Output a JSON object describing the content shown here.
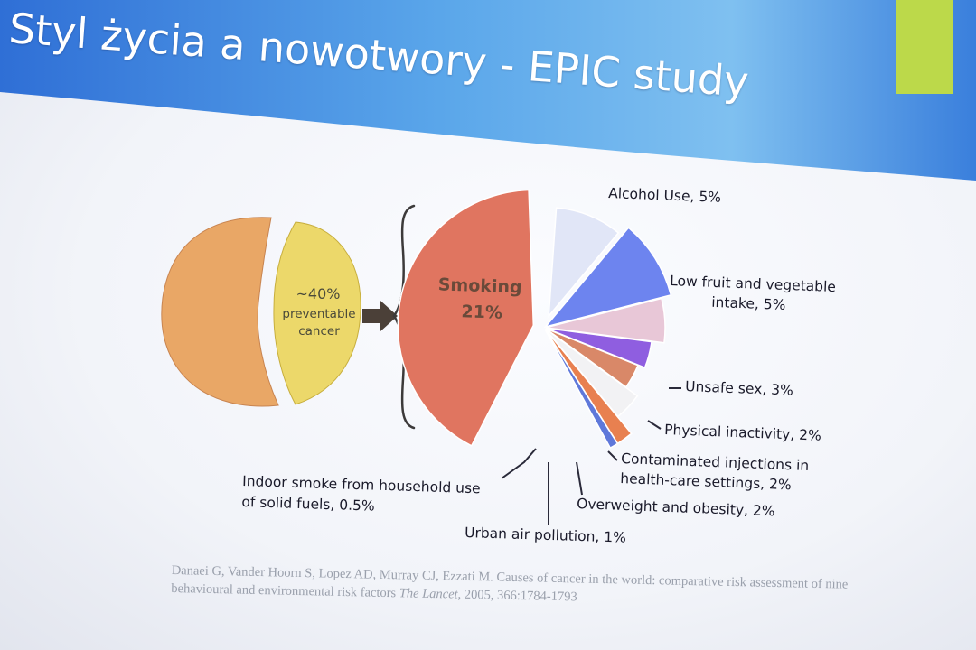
{
  "slide": {
    "title": "Styl życia a nowotwory  - EPIC study",
    "colors": {
      "header_blue": "#2f6fd6",
      "header_light": "#7fc0f0",
      "accent_square": "#bcd94a"
    }
  },
  "overview_pie": {
    "center_label": [
      "~40%",
      "preventable",
      "cancer"
    ],
    "colors": {
      "not_preventable": "#e9a766",
      "preventable": "#ecd86a",
      "label_accent": "#d2522f"
    }
  },
  "chart_data": {
    "type": "pie",
    "title": "",
    "unit": "%",
    "slices": [
      {
        "name": "Smoking",
        "value": 21,
        "label": "Smoking",
        "value_label": "21%",
        "color": "#e07560"
      },
      {
        "name": "Alcohol Use",
        "value": 5,
        "label": "Alcohol Use, 5%",
        "color": "#e1e6f7"
      },
      {
        "name": "Low fruit and vegetable intake",
        "value": 5,
        "label": "Low fruit and vegetable intake, 5%",
        "color": "#6d84ef"
      },
      {
        "name": "Unsafe sex",
        "value": 3,
        "label": "Unsafe sex, 3%",
        "color": "#e8c7d7"
      },
      {
        "name": "Physical inactivity",
        "value": 2,
        "label": "Physical inactivity, 2%",
        "color": "#8f5ee0"
      },
      {
        "name": "Contaminated injections in health-care settings",
        "value": 2,
        "label": "Contaminated injections in health-care settings, 2%",
        "color": "#d98868"
      },
      {
        "name": "Overweight and obesity",
        "value": 2,
        "label": "Overweight and obesity, 2%",
        "color": "#f2f2f4"
      },
      {
        "name": "Urban air pollution",
        "value": 1,
        "label": "Urban air pollution, 1%",
        "color": "#e88050"
      },
      {
        "name": "Indoor smoke from household use of solid fuels",
        "value": 0.5,
        "label": "Indoor smoke from household use of solid fuels, 0.5%",
        "color": "#5f78da"
      }
    ]
  },
  "labels": {
    "alcohol": [
      "Alcohol Use, 5%"
    ],
    "fruit": [
      "Low fruit and vegetable",
      "intake, 5%"
    ],
    "unsafe": [
      "Unsafe sex, 3%"
    ],
    "physical": [
      "Physical inactivity, 2%"
    ],
    "injections": [
      "Contaminated injections in",
      "health-care settings, 2%"
    ],
    "obesity": [
      "Overweight and obesity, 2%"
    ],
    "urban": [
      "Urban air pollution, 1%"
    ],
    "indoor": [
      "Indoor smoke from household use",
      "of solid fuels, 0.5%"
    ]
  },
  "citation": {
    "text": "Danaei G, Vander Hoorn S, Lopez AD, Murray CJ, Ezzati M. Causes of cancer in the world: comparative risk assessment of nine behavioural and environmental risk factors",
    "journal": "The Lancet",
    "details": ", 2005, 366:1784-1793"
  }
}
